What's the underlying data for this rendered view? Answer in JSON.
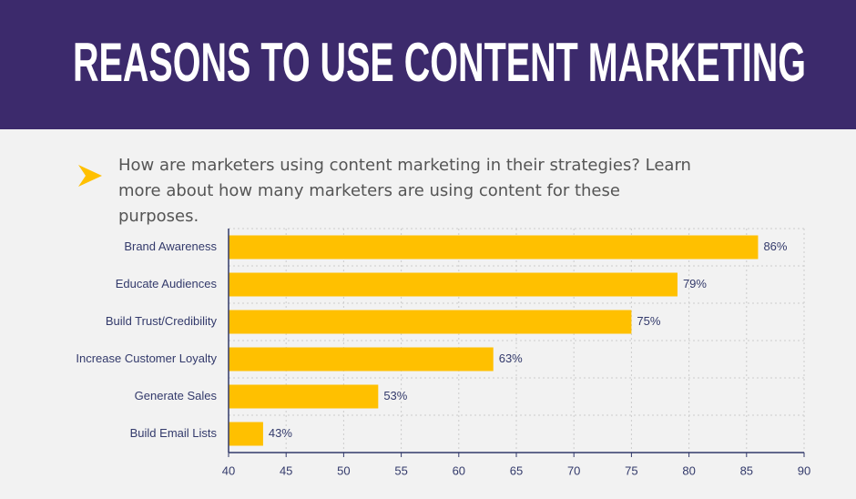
{
  "chart_data": {
    "type": "bar",
    "title": "REASONS TO USE CONTENT MARKETING",
    "subtitle": "How are marketers using content marketing in their strategies? Learn more about how many marketers are using content for these purposes.",
    "categories": [
      "Brand Awareness",
      "Educate Audiences",
      "Build Trust/Credibility",
      "Increase Customer Loyalty",
      "Generate Sales",
      "Build Email Lists"
    ],
    "values": [
      86,
      79,
      75,
      63,
      53,
      43
    ],
    "value_labels": [
      "86%",
      "79%",
      "75%",
      "63%",
      "53%",
      "43%"
    ],
    "color": "#ffc000",
    "xlim": [
      40,
      90
    ],
    "xticks": [
      40,
      45,
      50,
      55,
      60,
      65,
      70,
      75,
      80,
      85,
      90
    ],
    "grid": true
  }
}
